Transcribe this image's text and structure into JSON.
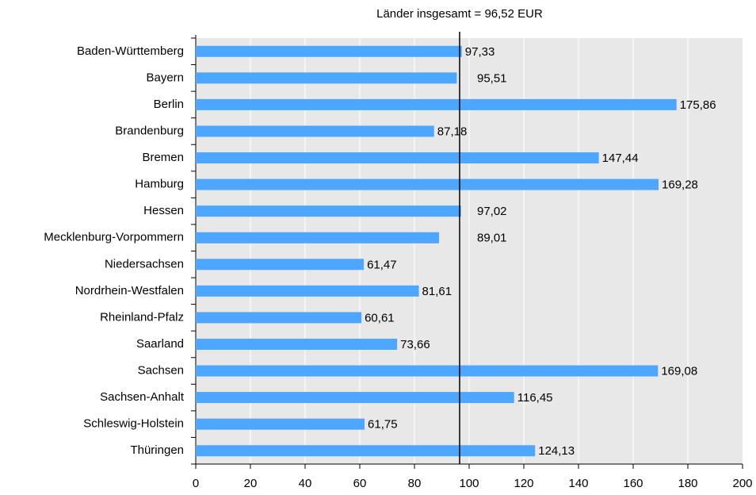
{
  "chart_data": {
    "type": "barh",
    "categories": [
      "Baden-Württemberg",
      "Bayern",
      "Berlin",
      "Brandenburg",
      "Bremen",
      "Hamburg",
      "Hessen",
      "Mecklenburg-Vorpommern",
      "Niedersachsen",
      "Nordrhein-Westfalen",
      "Rheinland-Pfalz",
      "Saarland",
      "Sachsen",
      "Sachsen-Anhalt",
      "Schleswig-Holstein",
      "Thüringen"
    ],
    "values": [
      97.33,
      95.51,
      175.86,
      87.18,
      147.44,
      169.28,
      97.02,
      89.01,
      61.47,
      81.61,
      60.61,
      73.66,
      169.08,
      116.45,
      61.75,
      124.13
    ],
    "value_labels": [
      "97,33",
      "95,51",
      "175,86",
      "87,18",
      "147,44",
      "169,28",
      "97,02",
      "89,01",
      "61,47",
      "81,61",
      "60,61",
      "73,66",
      "169,08",
      "116,45",
      "61,75",
      "124,13"
    ],
    "color": "#4da6ff",
    "xlim": [
      0,
      200
    ],
    "xticks": [
      0,
      20,
      40,
      60,
      80,
      100,
      120,
      140,
      160,
      180,
      200
    ],
    "grid": true,
    "reference_line": {
      "value": 96.52,
      "label": "Länder insgesamt = 96,52 EUR"
    }
  }
}
